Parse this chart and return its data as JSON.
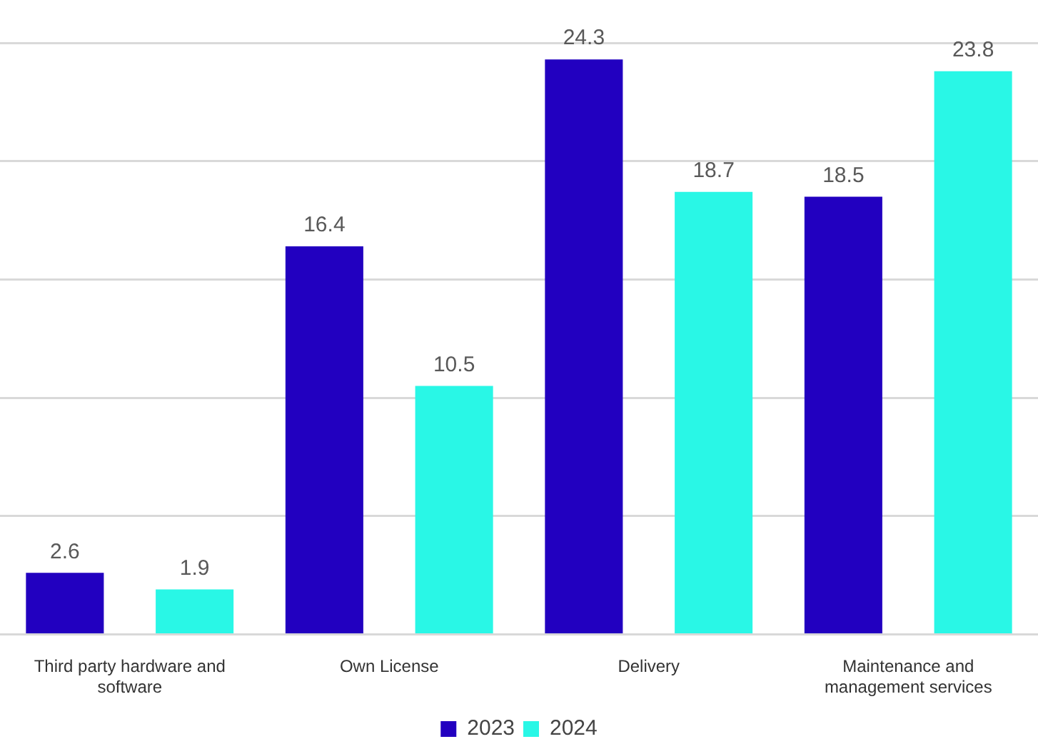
{
  "chart_data": {
    "type": "bar",
    "categories": [
      "Third party hardware and software",
      "Own License",
      "Delivery",
      "Maintenance and management services"
    ],
    "series": [
      {
        "name": "2023",
        "color": "#2200c0",
        "values": [
          2.6,
          16.4,
          24.3,
          18.5
        ]
      },
      {
        "name": "2024",
        "color": "#29f7e6",
        "values": [
          1.9,
          10.5,
          18.7,
          23.8
        ]
      }
    ],
    "ylim": [
      0,
      25
    ],
    "yticks": [
      {
        "value": 0,
        "label": null
      },
      {
        "value": 5,
        "label": null
      },
      {
        "value": 10,
        "label": null
      },
      {
        "value": 15,
        "label": null
      },
      {
        "value": 20,
        "label": null
      },
      {
        "value": 25,
        "label": null
      }
    ],
    "tick_labels": "x",
    "grid": "y",
    "legend": "bottom",
    "data_labels": true
  }
}
